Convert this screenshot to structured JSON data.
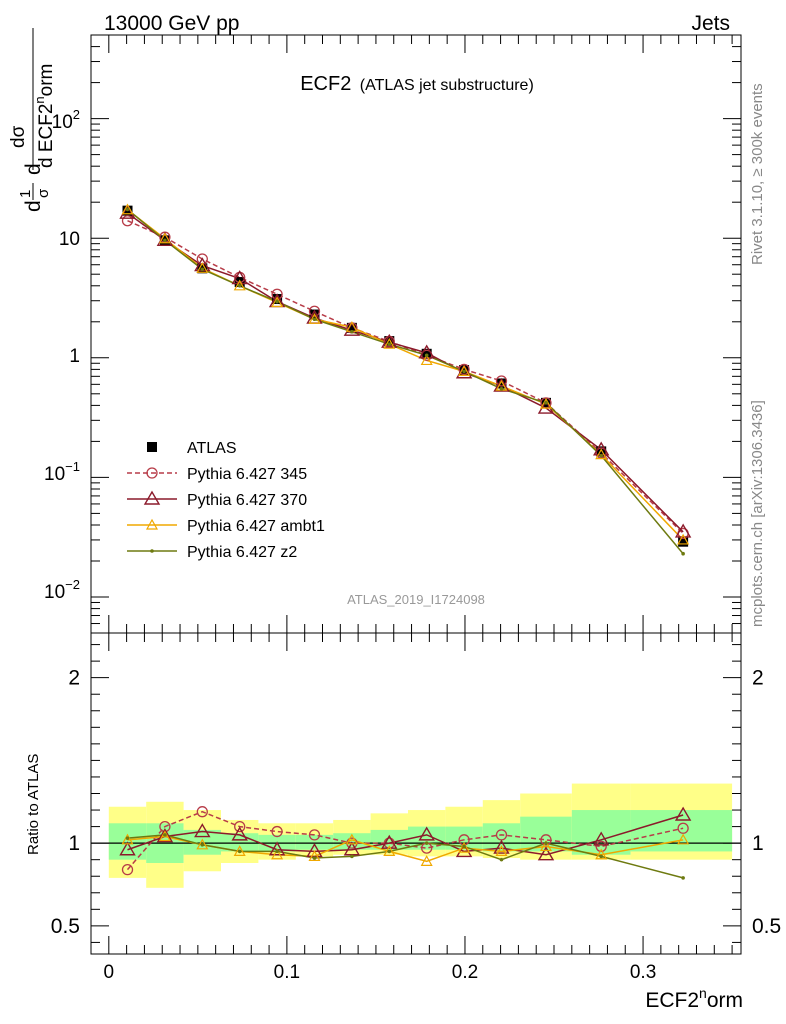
{
  "header": {
    "left": "13000 GeV pp",
    "right": "Jets"
  },
  "title": {
    "main": "ECF2",
    "sub": "(ATLAS jet substructure)"
  },
  "side_labels": {
    "rivet": "Rivet 3.1.10, ≥ 300k events",
    "mcplots": "mcplots.cern.ch [arXiv:1306.3436]"
  },
  "analysis_tag": "ATLAS_2019_I1724098",
  "ylabel_top": "1/σ dσ/d ECF2norm",
  "ylabel_ratio": "Ratio to ATLAS",
  "xlabel": "ECF2norm",
  "colors": {
    "atlas": "#000000",
    "p345": "#b73c48",
    "p370": "#8b1a2b",
    "ambt1": "#f0a800",
    "z2": "#6e7a10",
    "band_green": "#99ff99",
    "band_yellow": "#ffff88"
  },
  "chart_data": [
    {
      "type": "line",
      "yscale": "log",
      "ylim": [
        0.005,
        500
      ],
      "xlim": [
        -0.01,
        0.355
      ],
      "y_tick_labels": [
        "10^-2",
        "10^-1",
        "1",
        "10",
        "10^2"
      ],
      "legend_position": "middle-left",
      "x": [
        0.0105,
        0.0315,
        0.0525,
        0.0735,
        0.0945,
        0.1155,
        0.1365,
        0.1575,
        0.1785,
        0.1995,
        0.2205,
        0.2455,
        0.2765,
        0.3225
      ],
      "series": [
        {
          "name": "ATLAS",
          "marker": "square",
          "values": [
            17.0,
            9.6,
            5.6,
            4.3,
            3.1,
            2.3,
            1.78,
            1.38,
            1.08,
            0.79,
            0.61,
            0.42,
            0.165,
            0.029
          ]
        },
        {
          "name": "Pythia 6.427 345",
          "marker": "circle",
          "dashed": true,
          "values": [
            14.0,
            10.2,
            6.7,
            4.7,
            3.4,
            2.45,
            1.78,
            1.37,
            1.05,
            0.8,
            0.64,
            0.42,
            0.16,
            0.034
          ]
        },
        {
          "name": "Pythia 6.427 370",
          "marker": "triangle",
          "values": [
            16.2,
            9.6,
            5.9,
            4.6,
            2.95,
            2.15,
            1.7,
            1.35,
            1.1,
            0.75,
            0.58,
            0.38,
            0.17,
            0.035
          ]
        },
        {
          "name": "Pythia 6.427 ambt1",
          "marker": "small-triangle",
          "values": [
            17.3,
            9.9,
            5.6,
            4.0,
            2.9,
            2.1,
            1.8,
            1.3,
            0.95,
            0.77,
            0.58,
            0.41,
            0.155,
            0.03
          ]
        },
        {
          "name": "Pythia 6.427 z2",
          "marker": "dot",
          "values": [
            17.4,
            9.6,
            5.5,
            4.0,
            2.95,
            2.1,
            1.65,
            1.3,
            1.05,
            0.77,
            0.55,
            0.42,
            0.152,
            0.023
          ]
        }
      ]
    },
    {
      "type": "line",
      "yscale": "linear",
      "ylim": [
        0.33,
        2.27
      ],
      "xlim": [
        -0.01,
        0.355
      ],
      "y_ticks": [
        0.5,
        1,
        2
      ],
      "x_ticks": [
        0,
        0.1,
        0.2,
        0.3
      ],
      "reference_line": 1,
      "bands": {
        "edges": [
          0,
          0.021,
          0.042,
          0.063,
          0.084,
          0.105,
          0.126,
          0.147,
          0.168,
          0.189,
          0.21,
          0.231,
          0.26,
          0.293,
          0.35
        ],
        "green_lo": [
          0.9,
          0.88,
          0.93,
          0.95,
          0.95,
          0.96,
          0.96,
          0.96,
          0.96,
          0.96,
          0.95,
          0.95,
          0.93,
          0.95
        ],
        "green_hi": [
          1.12,
          1.12,
          1.08,
          1.06,
          1.05,
          1.05,
          1.06,
          1.08,
          1.1,
          1.1,
          1.12,
          1.16,
          1.2,
          1.2
        ],
        "yellow_lo": [
          0.79,
          0.73,
          0.83,
          0.88,
          0.9,
          0.92,
          0.93,
          0.93,
          0.92,
          0.92,
          0.91,
          0.9,
          0.9,
          0.9
        ],
        "yellow_hi": [
          1.22,
          1.25,
          1.2,
          1.14,
          1.12,
          1.12,
          1.14,
          1.18,
          1.2,
          1.22,
          1.26,
          1.3,
          1.36,
          1.36
        ]
      },
      "series": [
        {
          "name": "Pythia 6.427 345",
          "values": [
            0.84,
            1.1,
            1.19,
            1.1,
            1.07,
            1.05,
            1.0,
            1.0,
            0.97,
            1.02,
            1.05,
            1.02,
            0.98,
            1.09
          ]
        },
        {
          "name": "Pythia 6.427 370",
          "values": [
            0.96,
            1.04,
            1.07,
            1.05,
            0.96,
            0.95,
            0.96,
            1.0,
            1.05,
            0.95,
            0.97,
            0.93,
            1.02,
            1.17
          ]
        },
        {
          "name": "Pythia 6.427 ambt1",
          "values": [
            1.02,
            1.04,
            0.99,
            0.95,
            0.93,
            0.92,
            1.02,
            0.95,
            0.89,
            0.97,
            0.95,
            0.98,
            0.93,
            1.02
          ]
        },
        {
          "name": "Pythia 6.427 z2",
          "values": [
            1.03,
            1.05,
            0.99,
            0.95,
            0.95,
            0.91,
            0.92,
            0.95,
            1.0,
            0.98,
            0.9,
            1.0,
            0.92,
            0.79
          ]
        }
      ]
    }
  ]
}
